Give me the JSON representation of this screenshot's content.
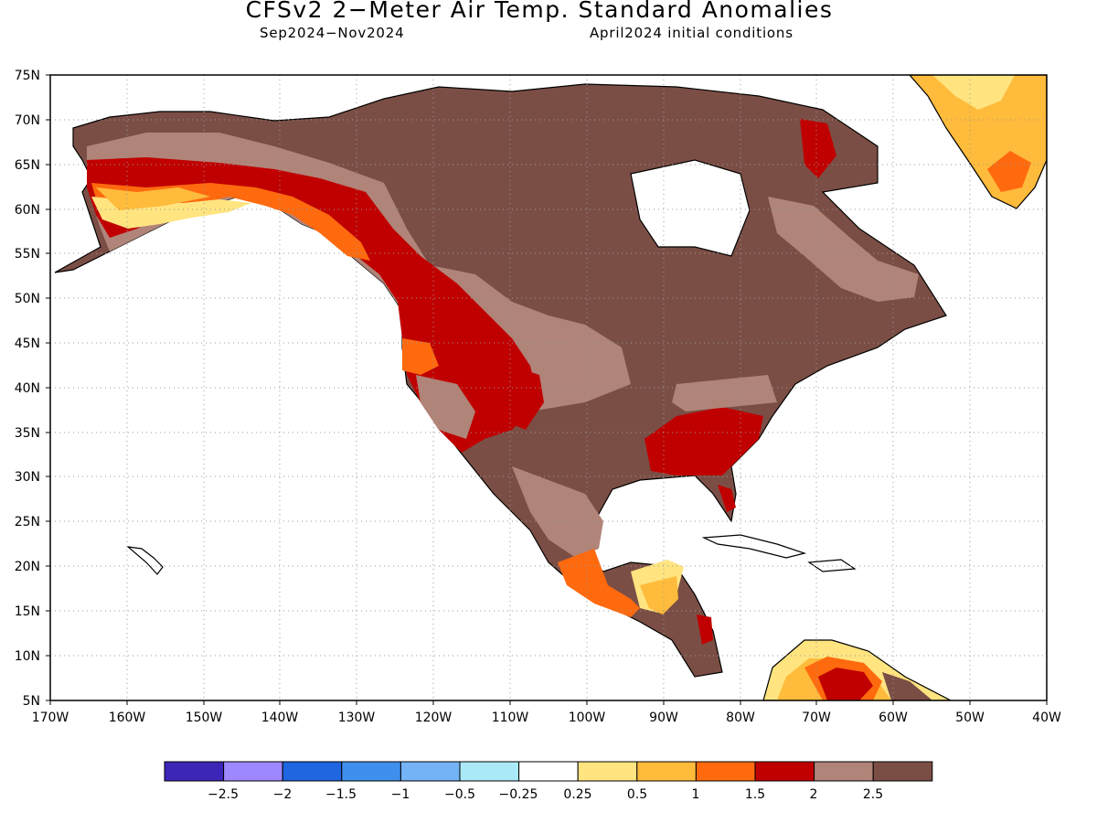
{
  "title": "CFSv2 2−Meter Air Temp. Standard Anomalies",
  "subtitle_left": "Sep2024−Nov2024",
  "subtitle_right": "April2024 initial conditions",
  "map": {
    "lat_labels": [
      "75N",
      "70N",
      "65N",
      "60N",
      "55N",
      "50N",
      "45N",
      "40N",
      "35N",
      "30N",
      "25N",
      "20N",
      "15N",
      "10N",
      "5N"
    ],
    "lon_labels": [
      "170W",
      "160W",
      "150W",
      "140W",
      "130W",
      "120W",
      "110W",
      "100W",
      "90W",
      "80W",
      "70W",
      "60W",
      "50W",
      "40W"
    ],
    "regions": [
      {
        "anomaly": "> 2.5",
        "area": "central and eastern Canada"
      },
      {
        "anomaly": "> 2.5",
        "area": "southern Plains, Texas and northern Mexico"
      },
      {
        "anomaly": "2 to 2.5",
        "area": "Alaska interior and Prairie belt"
      },
      {
        "anomaly": "1.5 to 2",
        "area": "Pacific Northwest, Great Basin and US Southeast"
      },
      {
        "anomaly": "0.25 to 1",
        "area": "southern Alaska coast, Mexico and Central America"
      }
    ]
  },
  "colorbar": {
    "colors": [
      "#3b26b7",
      "#9f87ff",
      "#1f66e0",
      "#3f8fed",
      "#74b3f5",
      "#aaeaf8",
      "#ffffff",
      "#ffe480",
      "#ffbb3b",
      "#ff6a0f",
      "#c00000",
      "#b08478",
      "#7b4e45"
    ],
    "labels": [
      "−2.5",
      "−2",
      "−1.5",
      "−1",
      "−0.5",
      "−0.25",
      "0.25",
      "0.5",
      "1",
      "1.5",
      "2",
      "2.5"
    ]
  }
}
